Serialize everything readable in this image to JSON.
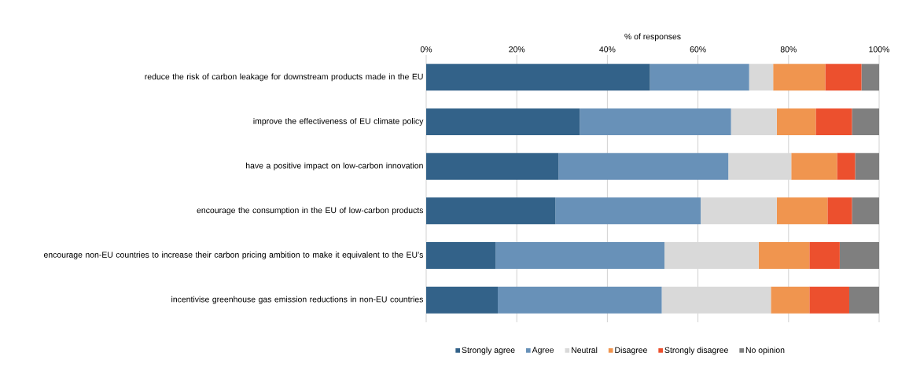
{
  "chart_data": {
    "type": "bar",
    "orientation": "horizontal",
    "stacked": true,
    "xlabel": "% of responses",
    "categories": [
      "reduce the risk of carbon leakage for downstream products made in the EU",
      "improve the effectiveness of EU climate policy",
      "have a positive impact on low-carbon innovation",
      "encourage the consumption in the EU of low-carbon products",
      "encourage non-EU countries to increase their carbon pricing ambition to make it equivalent to the EU’s",
      "incentivise greenhouse gas emission reductions in non-EU countries"
    ],
    "series": [
      {
        "name": "Strongly agree",
        "color": "#336289",
        "values": [
          49.4,
          33.9,
          29.2,
          28.5,
          15.3,
          15.8
        ]
      },
      {
        "name": "Agree",
        "color": "#6891b8",
        "values": [
          21.9,
          33.4,
          37.5,
          32.1,
          37.3,
          36.2
        ]
      },
      {
        "name": "Neutral",
        "color": "#d9d9d9",
        "values": [
          5.3,
          10.1,
          13.9,
          16.8,
          20.8,
          24.1
        ]
      },
      {
        "name": "Disagree",
        "color": "#f0954f",
        "values": [
          11.5,
          8.6,
          10.1,
          11.2,
          11.2,
          8.5
        ]
      },
      {
        "name": "Strongly disagree",
        "color": "#ec502e",
        "values": [
          8.0,
          8.0,
          4.0,
          5.4,
          6.7,
          8.8
        ]
      },
      {
        "name": "No opinion",
        "color": "#7f7f7f",
        "values": [
          3.9,
          6.0,
          5.3,
          6.0,
          8.7,
          6.6
        ]
      }
    ],
    "xlim": [
      0,
      100
    ],
    "xticks": [
      {
        "value": 0,
        "label": "0%"
      },
      {
        "value": 20,
        "label": "20%"
      },
      {
        "value": 40,
        "label": "40%"
      },
      {
        "value": 60,
        "label": "60%"
      },
      {
        "value": 80,
        "label": "80%"
      },
      {
        "value": 100,
        "label": "100%"
      }
    ],
    "grid": "x",
    "legend": "bottom"
  }
}
